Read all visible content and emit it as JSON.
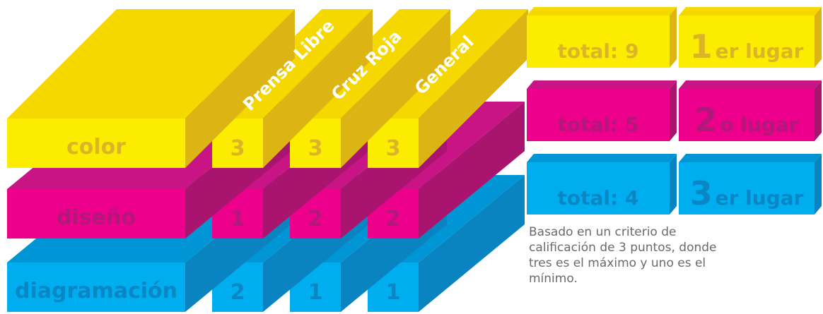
{
  "colors": {
    "yellow": {
      "front": "#fcec00",
      "top": "#f4d800",
      "side": "#dcb414",
      "text": "#dcb428"
    },
    "magenta": {
      "front": "#ec008c",
      "top": "#c81484",
      "side": "#a8146e",
      "text": "#b0187a"
    },
    "cyan": {
      "front": "#00aeef",
      "top": "#0096d6",
      "side": "#0a84c0",
      "text": "#0a86c4"
    }
  },
  "columns": [
    {
      "name": "Prensa Libre"
    },
    {
      "name": "Cruz Roja"
    },
    {
      "name": "General"
    }
  ],
  "rows": [
    {
      "label": "color",
      "color": "yellow",
      "scores": [
        "3",
        "3",
        "3"
      ]
    },
    {
      "label": "diseño",
      "color": "magenta",
      "scores": [
        "1",
        "2",
        "2"
      ]
    },
    {
      "label": "diagramación",
      "color": "cyan",
      "scores": [
        "2",
        "1",
        "1"
      ]
    }
  ],
  "totals": [
    {
      "text": "total:  9",
      "place_number": "1",
      "place_suffix": "er lugar",
      "color": "yellow"
    },
    {
      "text": "total:  5",
      "place_number": "2",
      "place_suffix": "o lugar",
      "color": "magenta"
    },
    {
      "text": "total:  4",
      "place_number": "3",
      "place_suffix": "er lugar",
      "color": "cyan"
    }
  ],
  "note": "Basado en un criterio de calificación de 3 puntos, donde tres es el máximo y uno es el mínimo."
}
